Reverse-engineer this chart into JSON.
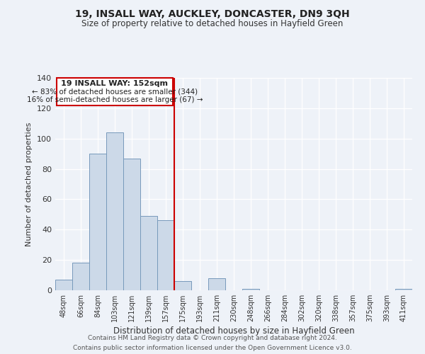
{
  "title": "19, INSALL WAY, AUCKLEY, DONCASTER, DN9 3QH",
  "subtitle": "Size of property relative to detached houses in Hayfield Green",
  "xlabel": "Distribution of detached houses by size in Hayfield Green",
  "ylabel": "Number of detached properties",
  "annotation_line1": "19 INSALL WAY: 152sqm",
  "annotation_line2": "← 83% of detached houses are smaller (344)",
  "annotation_line3": "16% of semi-detached houses are larger (67) →",
  "bar_labels": [
    "48sqm",
    "66sqm",
    "84sqm",
    "103sqm",
    "121sqm",
    "139sqm",
    "157sqm",
    "175sqm",
    "193sqm",
    "211sqm",
    "230sqm",
    "248sqm",
    "266sqm",
    "284sqm",
    "302sqm",
    "320sqm",
    "338sqm",
    "357sqm",
    "375sqm",
    "393sqm",
    "411sqm"
  ],
  "bar_values": [
    7,
    18,
    90,
    104,
    87,
    49,
    46,
    6,
    0,
    8,
    0,
    1,
    0,
    0,
    0,
    0,
    0,
    0,
    0,
    0,
    1
  ],
  "bar_color": "#ccd9e8",
  "bar_edge_color": "#7799bb",
  "vline_x": 6.5,
  "vline_color": "#cc0000",
  "annotation_box_color": "#cc0000",
  "ylim": [
    0,
    140
  ],
  "yticks": [
    0,
    20,
    40,
    60,
    80,
    100,
    120,
    140
  ],
  "background_color": "#eef2f8",
  "footer_line1": "Contains HM Land Registry data © Crown copyright and database right 2024.",
  "footer_line2": "Contains public sector information licensed under the Open Government Licence v3.0."
}
